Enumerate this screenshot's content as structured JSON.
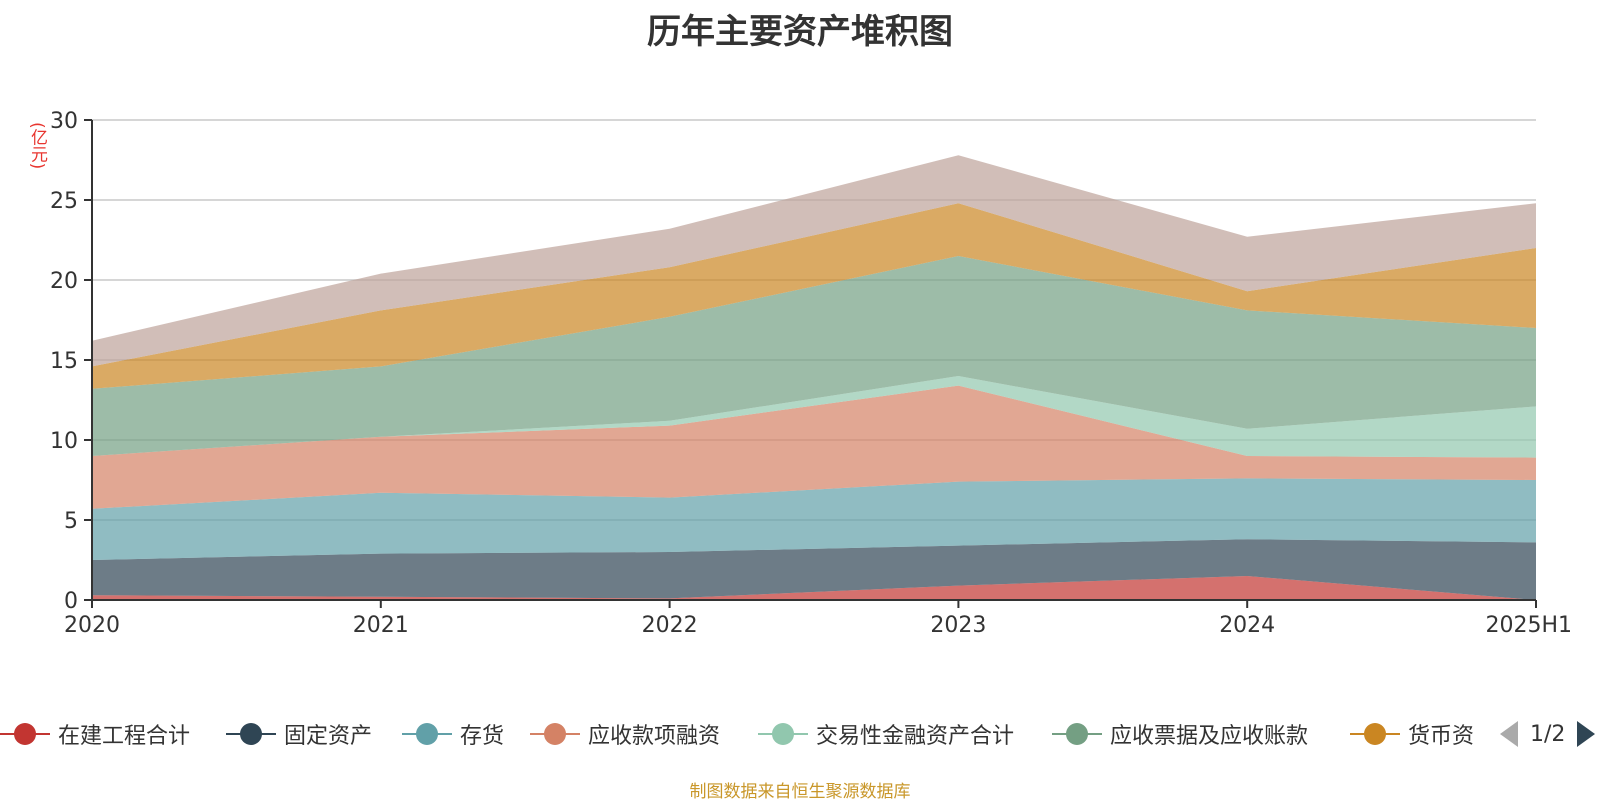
{
  "title": "历年主要资产堆积图",
  "unit_label": "(亿元)",
  "source_note": "制图数据来自恒生聚源数据库",
  "pager": {
    "text": "1/2"
  },
  "chart_data": {
    "type": "area",
    "stacked": true,
    "title": "历年主要资产堆积图",
    "ylabel": "(亿元)",
    "ylim": [
      0,
      30
    ],
    "yticks": [
      0,
      5,
      10,
      15,
      20,
      25,
      30
    ],
    "grid": true,
    "legend_position": "bottom",
    "categories": [
      "2020",
      "2021",
      "2022",
      "2023",
      "2024",
      "2025H1"
    ],
    "series": [
      {
        "name": "在建工程合计",
        "color": "#c23531",
        "values": [
          0.3,
          0.2,
          0.1,
          0.9,
          1.5,
          0.0
        ]
      },
      {
        "name": "固定资产",
        "color": "#2f4554",
        "values": [
          2.2,
          2.7,
          2.9,
          2.5,
          2.3,
          3.6
        ]
      },
      {
        "name": "存货",
        "color": "#61a0a8",
        "values": [
          3.2,
          3.8,
          3.4,
          4.0,
          3.8,
          3.9
        ]
      },
      {
        "name": "应收款项融资",
        "color": "#d48265",
        "values": [
          3.3,
          3.5,
          4.5,
          6.0,
          1.4,
          1.4
        ]
      },
      {
        "name": "交易性金融资产合计",
        "color": "#91c7ae",
        "values": [
          0.0,
          0.0,
          0.3,
          0.6,
          1.7,
          3.2
        ]
      },
      {
        "name": "应收票据及应收账款",
        "color": "#749f83",
        "values": [
          4.2,
          4.4,
          6.5,
          7.5,
          7.4,
          4.9
        ]
      },
      {
        "name": "货币资金",
        "color": "#ca8622",
        "values": [
          1.4,
          3.5,
          3.1,
          3.3,
          1.2,
          5.0
        ]
      },
      {
        "name": "",
        "color": "#bda29a",
        "values": [
          1.6,
          2.3,
          2.4,
          3.0,
          3.4,
          2.8
        ]
      }
    ]
  },
  "legend": [
    {
      "label": "在建工程合计",
      "color": "#c23531"
    },
    {
      "label": "固定资产",
      "color": "#2f4554"
    },
    {
      "label": "存货",
      "color": "#61a0a8"
    },
    {
      "label": "应收款项融资",
      "color": "#d48265"
    },
    {
      "label": "交易性金融资产合计",
      "color": "#91c7ae"
    },
    {
      "label": "应收票据及应收账款",
      "color": "#749f83"
    },
    {
      "label": "货币资",
      "color": "#ca8622"
    }
  ]
}
